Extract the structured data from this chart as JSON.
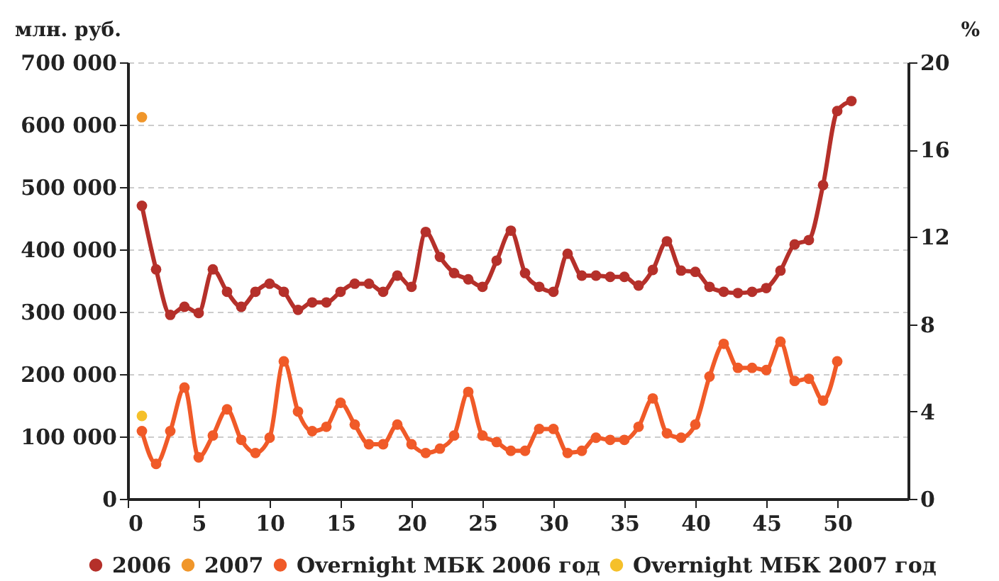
{
  "chart_data": {
    "type": "line",
    "ylabel": "млн. руб.",
    "y2label": "%",
    "x": [
      1,
      2,
      3,
      4,
      5,
      6,
      7,
      8,
      9,
      10,
      11,
      12,
      13,
      14,
      15,
      16,
      17,
      18,
      19,
      20,
      21,
      22,
      23,
      24,
      25,
      26,
      27,
      28,
      29,
      30,
      31,
      32,
      33,
      34,
      35,
      36,
      37,
      38,
      39,
      40,
      41,
      42,
      43,
      44,
      45,
      46,
      47,
      48,
      49,
      50,
      51
    ],
    "xlim": [
      0,
      55
    ],
    "xticks": [
      0,
      5,
      10,
      15,
      20,
      25,
      30,
      35,
      40,
      45,
      50
    ],
    "ylim": [
      0,
      700000
    ],
    "yticks": [
      {
        "value": 0,
        "label": "0"
      },
      {
        "value": 100000,
        "label": "100 000"
      },
      {
        "value": 200000,
        "label": "200 000"
      },
      {
        "value": 300000,
        "label": "300 000"
      },
      {
        "value": 400000,
        "label": "400 000"
      },
      {
        "value": 500000,
        "label": "500 000"
      },
      {
        "value": 600000,
        "label": "600 000"
      },
      {
        "value": 700000,
        "label": "700 000"
      }
    ],
    "y2lim": [
      0,
      20
    ],
    "y2ticks": [
      0,
      4,
      8,
      12,
      16,
      20
    ],
    "grid": "y",
    "legend": "bottom",
    "marker": "circle",
    "line_style": "solid",
    "series": [
      {
        "name": "2006",
        "color": "#b5302a",
        "values": [
          470000,
          368000,
          295000,
          308000,
          298000,
          368000,
          332000,
          308000,
          332000,
          345000,
          332000,
          303000,
          315000,
          315000,
          332000,
          345000,
          345000,
          332000,
          358000,
          340000,
          428000,
          388000,
          362000,
          352000,
          340000,
          382000,
          430000,
          362000,
          340000,
          332000,
          393000,
          358000,
          358000,
          356000,
          356000,
          342000,
          367000,
          413000,
          366000,
          364000,
          340000,
          332000,
          330000,
          332000,
          338000,
          366000,
          408000,
          415000,
          503000,
          622000,
          638000
        ]
      },
      {
        "name": "2007",
        "color": "#f0962a",
        "values": [
          612000,
          null,
          null,
          null,
          null,
          null,
          null,
          null,
          null,
          null,
          null,
          null,
          null,
          null,
          null,
          null,
          null,
          null,
          null,
          null,
          null,
          null,
          null,
          null,
          null,
          null,
          null,
          null,
          null,
          null,
          null,
          null,
          null,
          null,
          null,
          null,
          null,
          null,
          null,
          null,
          null,
          null,
          null,
          null,
          null,
          null,
          null,
          null,
          null,
          null,
          null
        ]
      },
      {
        "name": "Overnight МБК 2006 год",
        "color": "#f05a28",
        "axis": "y2",
        "values": [
          3.1,
          1.6,
          3.1,
          5.1,
          1.9,
          2.9,
          4.1,
          2.7,
          2.1,
          2.8,
          6.3,
          4.0,
          3.1,
          3.3,
          4.4,
          3.4,
          2.5,
          2.5,
          3.4,
          2.5,
          2.1,
          2.3,
          2.9,
          4.9,
          2.9,
          2.6,
          2.2,
          2.2,
          3.2,
          3.2,
          2.1,
          2.2,
          2.8,
          2.7,
          2.7,
          3.3,
          4.6,
          3.0,
          2.8,
          3.4,
          5.6,
          7.1,
          6.0,
          6.0,
          5.9,
          7.2,
          5.4,
          5.5,
          4.5,
          6.3,
          null
        ]
      },
      {
        "name": "Overnight МБК 2007 год",
        "color": "#f5c02a",
        "axis": "y2",
        "values": [
          3.8,
          null,
          null,
          null,
          null,
          null,
          null,
          null,
          null,
          null,
          null,
          null,
          null,
          null,
          null,
          null,
          null,
          null,
          null,
          null,
          null,
          null,
          null,
          null,
          null,
          null,
          null,
          null,
          null,
          null,
          null,
          null,
          null,
          null,
          null,
          null,
          null,
          null,
          null,
          null,
          null,
          null,
          null,
          null,
          null,
          null,
          null,
          null,
          null,
          null,
          null
        ]
      }
    ]
  }
}
